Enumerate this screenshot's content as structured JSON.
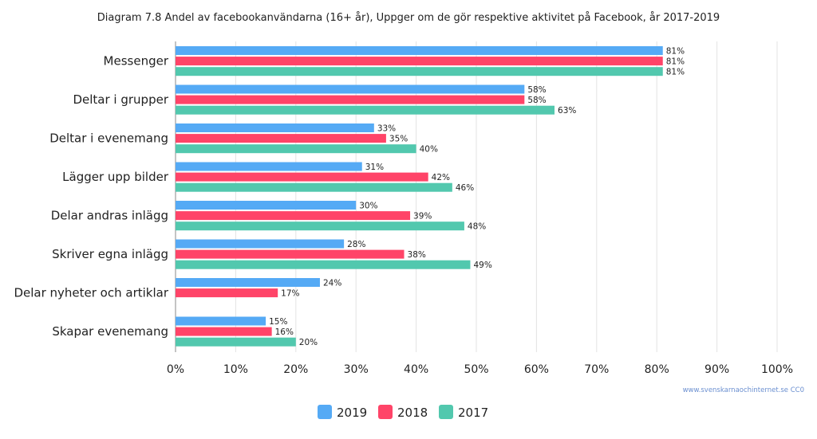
{
  "chart_data": {
    "type": "bar",
    "orientation": "horizontal",
    "title": "Diagram 7.8 Andel av facebookanvändarna (16+ år), Uppger om de gör respektive aktivitet på Facebook, år 2017-2019",
    "categories": [
      "Messenger",
      "Deltar i grupper",
      "Deltar i evenemang",
      "Lägger upp bilder",
      "Delar andras inlägg",
      "Skriver egna inlägg",
      "Delar nyheter och artiklar",
      "Skapar evenemang"
    ],
    "series": [
      {
        "name": "2019",
        "color": "#55aaf5",
        "values": [
          81,
          58,
          33,
          31,
          30,
          28,
          24,
          15
        ],
        "labels": [
          "81%",
          "58%",
          "33%",
          "31%",
          "30%",
          "28%",
          "24%",
          "15%"
        ]
      },
      {
        "name": "2018",
        "color": "#ff4468",
        "values": [
          81,
          58,
          35,
          42,
          39,
          38,
          17,
          16
        ],
        "labels": [
          "81%",
          "58%",
          "35%",
          "42%",
          "39%",
          "38%",
          "17%",
          "16%"
        ]
      },
      {
        "name": "2017",
        "color": "#52c8ae",
        "values": [
          81,
          63,
          40,
          46,
          48,
          49,
          null,
          20
        ],
        "labels": [
          "81%",
          "63%",
          "40%",
          "46%",
          "48%",
          "49%",
          "",
          "20%"
        ]
      }
    ],
    "xlim": [
      0,
      100
    ],
    "x_ticks": [
      0,
      10,
      20,
      30,
      40,
      50,
      60,
      70,
      80,
      90,
      100
    ],
    "x_tick_labels": [
      "0%",
      "10%",
      "20%",
      "30%",
      "40%",
      "50%",
      "60%",
      "70%",
      "80%",
      "90%",
      "100%"
    ],
    "grid": true,
    "legend_position": "bottom-center",
    "source": "www.svenskarnaochinternet.se CC0"
  }
}
